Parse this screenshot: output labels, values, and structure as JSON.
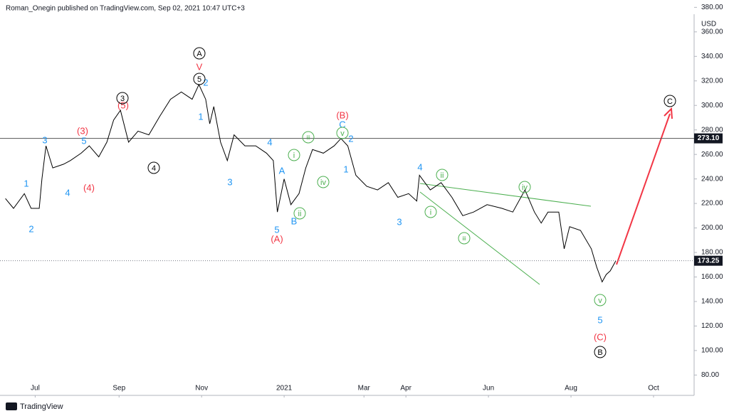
{
  "chart_data": {
    "type": "line",
    "title": "Roman_Onegin published on TradingView.com, Sep 02, 2021 10:47 UTC+3",
    "source": "TradingView",
    "currency": "USD",
    "color": "#000000",
    "x": [
      0,
      6,
      14,
      19,
      25,
      27,
      30,
      35,
      43,
      48,
      56,
      62,
      69,
      75,
      80,
      85,
      91,
      98,
      106,
      114,
      122,
      130,
      138,
      143,
      148,
      151,
      154,
      159,
      164,
      169,
      177,
      185,
      193,
      198,
      201,
      206,
      211,
      217,
      222,
      227,
      235,
      243,
      248,
      253,
      259,
      267,
      275,
      283,
      290,
      298,
      304,
      306,
      314,
      322,
      330,
      338,
      346,
      356,
      367,
      375,
      384,
      391,
      396,
      401,
      409,
      413,
      417,
      425,
      433,
      437,
      441,
      444,
      447,
      451
    ],
    "values": [
      224,
      216,
      228,
      216,
      216,
      240,
      267,
      249,
      252,
      255,
      261,
      267,
      258,
      270,
      288,
      296,
      270,
      279,
      276,
      291,
      305,
      311,
      305,
      317,
      305,
      285,
      299,
      270,
      255,
      276,
      267,
      267,
      261,
      255,
      213,
      240,
      219,
      228,
      249,
      264,
      261,
      267,
      273,
      267,
      243,
      234,
      231,
      237,
      225,
      228,
      222,
      243,
      231,
      237,
      225,
      210,
      213,
      219,
      216,
      213,
      231,
      213,
      204,
      213,
      213,
      183,
      201,
      198,
      183,
      168,
      156,
      162,
      165,
      173
    ],
    "xlim": [
      -4,
      509
    ],
    "xticks": [
      {
        "value": 22,
        "label": "Jul"
      },
      {
        "value": 84,
        "label": "Sep"
      },
      {
        "value": 145,
        "label": "Nov"
      },
      {
        "value": 206,
        "label": "2021"
      },
      {
        "value": 265,
        "label": "Mar"
      },
      {
        "value": 296,
        "label": "Apr"
      },
      {
        "value": 357,
        "label": "Jun"
      },
      {
        "value": 418,
        "label": "Aug"
      },
      {
        "value": 479,
        "label": "Oct"
      }
    ],
    "ylim": [
      66.3,
      386
    ],
    "yticks": [
      {
        "value": 80,
        "label": "80.00"
      },
      {
        "value": 100,
        "label": "100.00"
      },
      {
        "value": 120,
        "label": "120.00"
      },
      {
        "value": 140,
        "label": "140.00"
      },
      {
        "value": 160,
        "label": "160.00"
      },
      {
        "value": 180,
        "label": "180.00"
      },
      {
        "value": 200,
        "label": "200.00"
      },
      {
        "value": 220,
        "label": "220.00"
      },
      {
        "value": 240,
        "label": "240.00"
      },
      {
        "value": 260,
        "label": "260.00"
      },
      {
        "value": 280,
        "label": "280.00"
      },
      {
        "value": 300,
        "label": "300.00"
      },
      {
        "value": 320,
        "label": "320.00"
      },
      {
        "value": 340,
        "label": "340.00"
      },
      {
        "value": 360,
        "label": "360.00"
      },
      {
        "value": 380,
        "label": "380.00"
      }
    ],
    "price_lines": [
      {
        "value": 273.1,
        "label": "273.10",
        "style": "solid"
      },
      {
        "value": 173.25,
        "label": "173.25",
        "style": "dotted"
      }
    ],
    "annotations": [
      {
        "text": "1",
        "color": "#2196f3",
        "circled": false
      },
      {
        "text": "2",
        "color": "#2196f3",
        "circled": false
      },
      {
        "text": "3",
        "color": "#2196f3",
        "circled": false
      },
      {
        "text": "4",
        "color": "#2196f3",
        "circled": false
      },
      {
        "text": "5",
        "color": "#2196f3",
        "circled": false
      },
      {
        "text": "1",
        "color": "#2196f3",
        "circled": false
      },
      {
        "text": "2",
        "color": "#2196f3",
        "circled": false
      },
      {
        "text": "4",
        "color": "#2196f3",
        "circled": false
      },
      {
        "text": "3",
        "color": "#2196f3",
        "circled": false
      },
      {
        "text": "A",
        "color": "#2196f3",
        "circled": false
      },
      {
        "text": "B",
        "color": "#2196f3",
        "circled": false
      },
      {
        "text": "5",
        "color": "#2196f3",
        "circled": false
      },
      {
        "text": "C",
        "color": "#2196f3",
        "circled": false
      },
      {
        "text": "2",
        "color": "#2196f3",
        "circled": false
      },
      {
        "text": "1",
        "color": "#2196f3",
        "circled": false
      },
      {
        "text": "4",
        "color": "#2196f3",
        "circled": false
      },
      {
        "text": "3",
        "color": "#2196f3",
        "circled": false
      },
      {
        "text": "5",
        "color": "#2196f3",
        "circled": false
      },
      {
        "text": "(3)",
        "color": "#f23645",
        "circled": false
      },
      {
        "text": "(4)",
        "color": "#f23645",
        "circled": false
      },
      {
        "text": "(5)",
        "color": "#f23645",
        "circled": false
      },
      {
        "text": "V",
        "color": "#f23645",
        "circled": false
      },
      {
        "text": "(A)",
        "color": "#f23645",
        "circled": false
      },
      {
        "text": "(B)",
        "color": "#f23645",
        "circled": false
      },
      {
        "text": "(C)",
        "color": "#f23645",
        "circled": false
      },
      {
        "text": "3",
        "color": "#000000",
        "circled": true
      },
      {
        "text": "4",
        "color": "#000000",
        "circled": true
      },
      {
        "text": "5",
        "color": "#000000",
        "circled": true
      },
      {
        "text": "A",
        "color": "#000000",
        "circled": true
      },
      {
        "text": "B",
        "color": "#000000",
        "circled": true
      },
      {
        "text": "C",
        "color": "#000000",
        "circled": true
      },
      {
        "text": "iii",
        "color": "#4caf50",
        "circled": true
      },
      {
        "text": "i",
        "color": "#4caf50",
        "circled": true
      },
      {
        "text": "iv",
        "color": "#4caf50",
        "circled": true
      },
      {
        "text": "ii",
        "color": "#4caf50",
        "circled": true
      },
      {
        "text": "v",
        "color": "#4caf50",
        "circled": true
      },
      {
        "text": "ii",
        "color": "#4caf50",
        "circled": true
      },
      {
        "text": "i",
        "color": "#4caf50",
        "circled": true
      },
      {
        "text": "iii",
        "color": "#4caf50",
        "circled": true
      },
      {
        "text": "iv",
        "color": "#4caf50",
        "circled": true
      },
      {
        "text": "v",
        "color": "#4caf50",
        "circled": true
      }
    ]
  }
}
